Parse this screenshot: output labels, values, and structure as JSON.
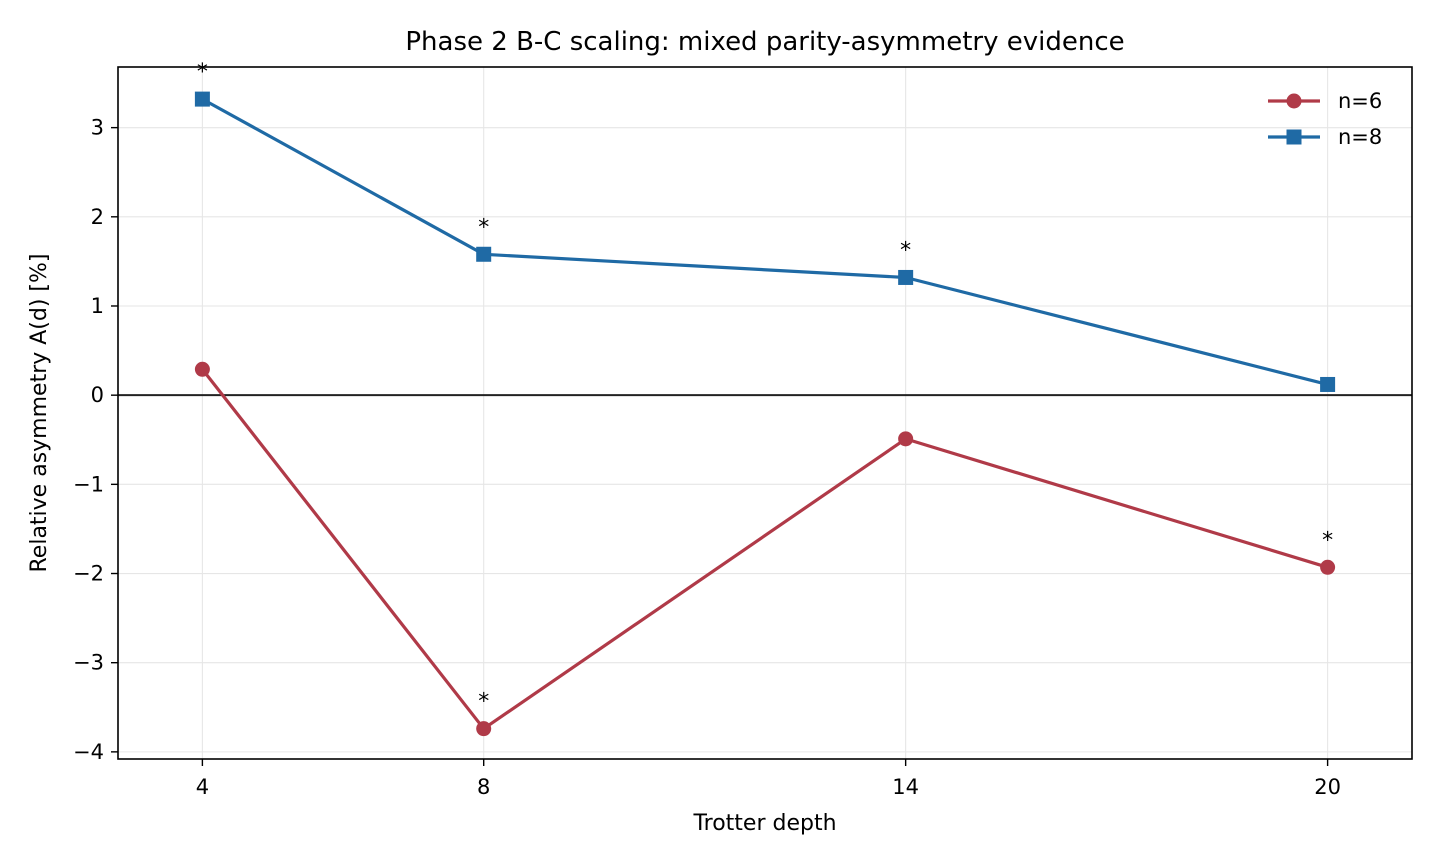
{
  "chart_data": {
    "type": "line",
    "title": "Phase 2 B-C scaling: mixed parity-asymmetry evidence",
    "xlabel": "Trotter depth",
    "ylabel": "Relative asymmetry A(d) [%]",
    "x": [
      4,
      8,
      14,
      20
    ],
    "x_tick_labels": [
      "4",
      "8",
      "14",
      "20"
    ],
    "xlim": [
      2.8,
      21.2
    ],
    "ylim": [
      -4.08,
      3.68
    ],
    "y_ticks": [
      -4,
      -3,
      -2,
      -1,
      0,
      1,
      2,
      3
    ],
    "y_tick_labels": [
      "−4",
      "−3",
      "−2",
      "−1",
      "0",
      "1",
      "2",
      "3"
    ],
    "grid": true,
    "legend_position": "top-right",
    "reference_line": 0,
    "series": [
      {
        "name": "n=6",
        "color": "#b03a48",
        "marker": "circle",
        "values": [
          0.29,
          -3.74,
          -0.49,
          -1.93
        ],
        "significance": [
          "",
          "*",
          "",
          "*"
        ]
      },
      {
        "name": "n=8",
        "color": "#1f6aa5",
        "marker": "square",
        "values": [
          3.32,
          1.58,
          1.32,
          0.12
        ],
        "significance": [
          "*",
          "*",
          "*",
          ""
        ]
      }
    ]
  }
}
